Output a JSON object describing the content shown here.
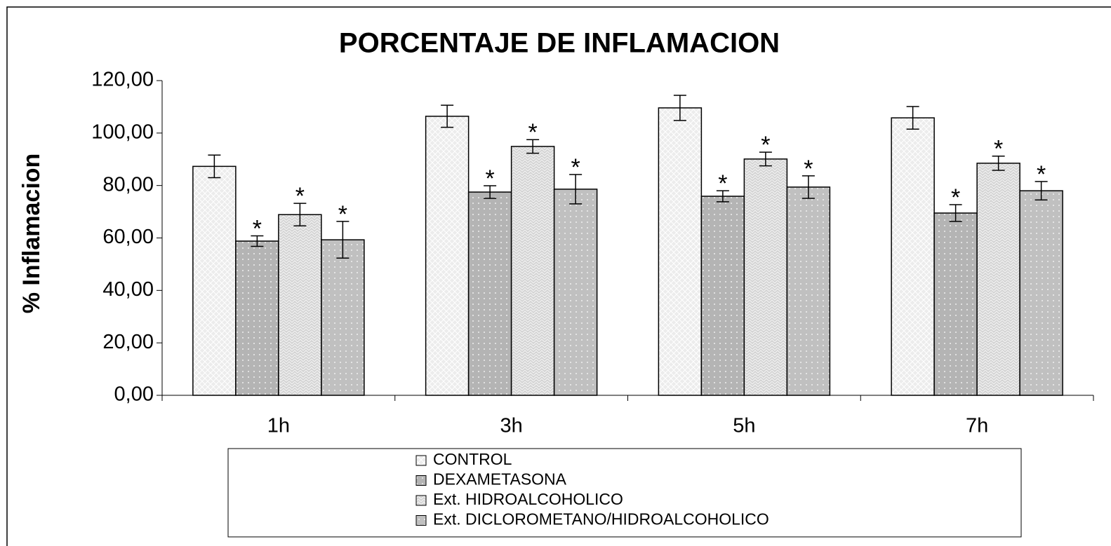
{
  "chart_data": {
    "type": "bar",
    "title": "PORCENTAJE DE INFLAMACION",
    "y_label": "% Inflamacion",
    "categories": [
      "1h",
      "3h",
      "5h",
      "7h"
    ],
    "series": [
      {
        "name": "CONTROL",
        "color": "#ececec",
        "values": [
          87.3,
          106.4,
          109.6,
          105.8
        ],
        "errors": [
          4.3,
          4.2,
          4.8,
          4.3
        ]
      },
      {
        "name": "DEXAMETASONA",
        "color": "#b4b4b4",
        "values": [
          58.8,
          77.5,
          75.9,
          69.5
        ],
        "errors": [
          2.0,
          2.4,
          2.1,
          3.2
        ],
        "annotations": [
          "*",
          "*",
          "*",
          "*"
        ]
      },
      {
        "name": "Ext. HIDROALCOHOLICO",
        "color": "#d4d4d4",
        "values": [
          68.9,
          94.9,
          90.1,
          88.5
        ],
        "errors": [
          4.3,
          2.6,
          2.6,
          2.7
        ],
        "annotations": [
          "*",
          "*",
          "*",
          "*"
        ]
      },
      {
        "name": "Ext. DICLOROMETANO/HIDROALCOHOLICO",
        "color": "#c0c0c0",
        "values": [
          59.3,
          78.6,
          79.4,
          78.0
        ],
        "errors": [
          7.0,
          5.6,
          4.3,
          3.5
        ],
        "annotations": [
          "*",
          "*",
          "*",
          "*"
        ]
      }
    ],
    "ylim": [
      0,
      120
    ],
    "yticks": [
      {
        "value": 0,
        "label": "0,00"
      },
      {
        "value": 20,
        "label": "20,00"
      },
      {
        "value": 40,
        "label": "40,00"
      },
      {
        "value": 60,
        "label": "60,00"
      },
      {
        "value": 80,
        "label": "80,00"
      },
      {
        "value": 100,
        "label": "100,00"
      },
      {
        "value": 120,
        "label": "120,00"
      }
    ],
    "grid": false,
    "legend": "bottom"
  }
}
